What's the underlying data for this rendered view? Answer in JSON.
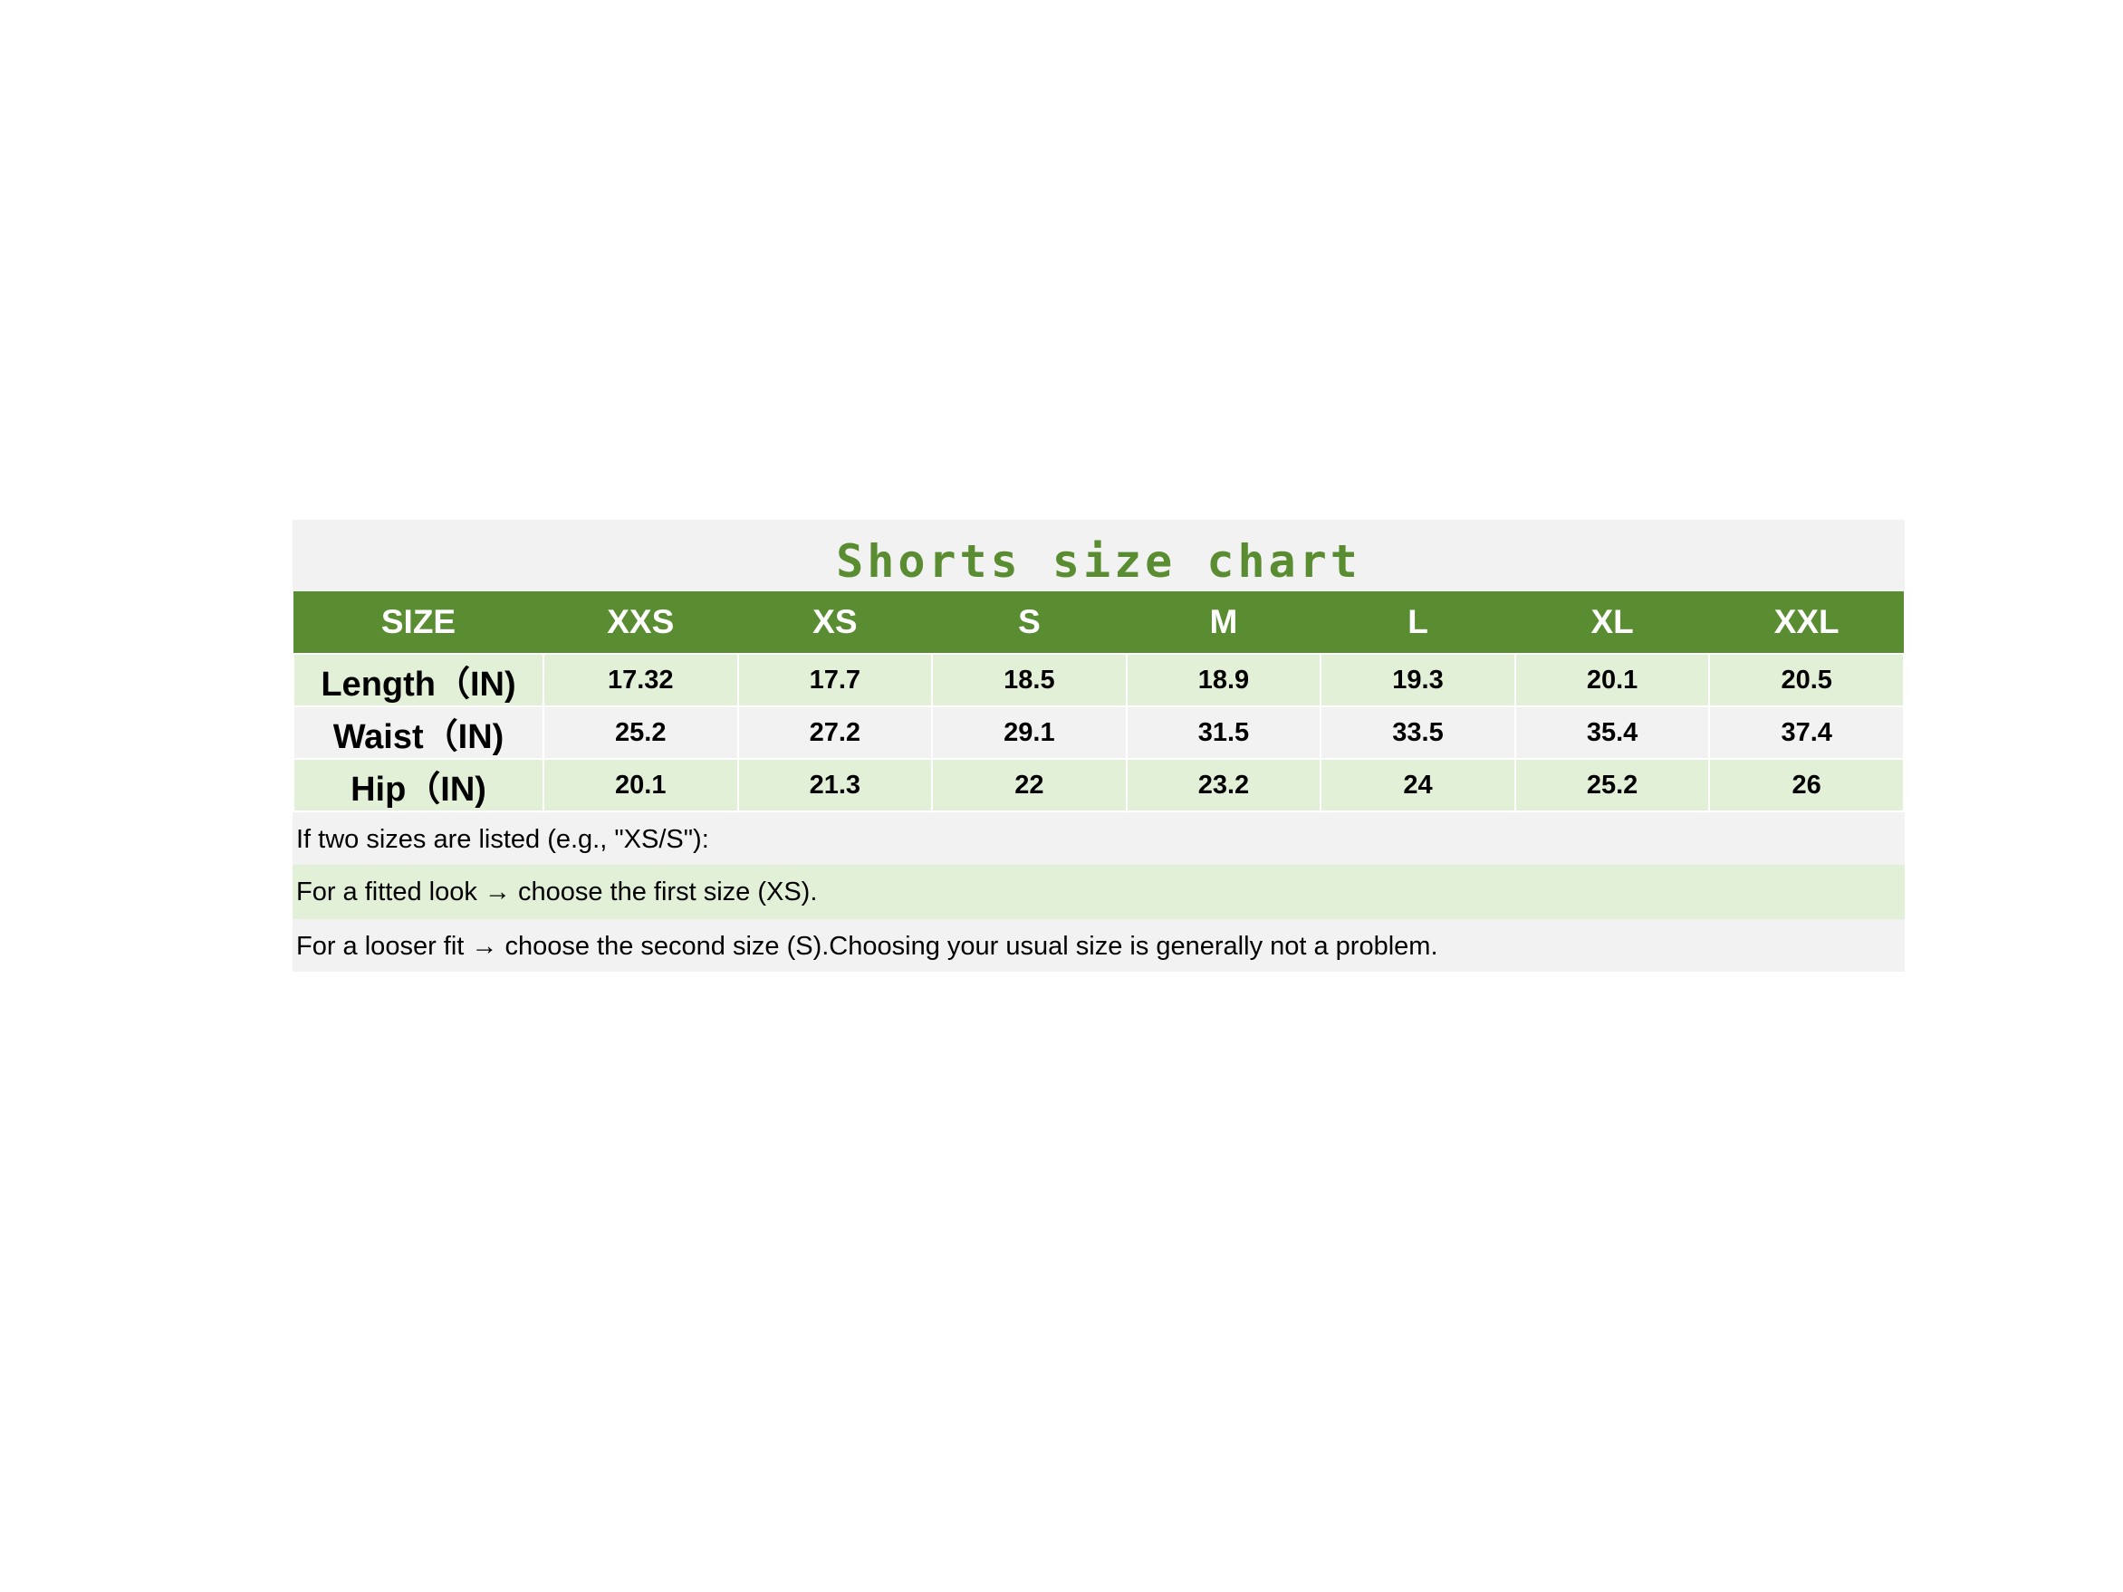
{
  "title": "Shorts size chart",
  "colors": {
    "header_bg": "#5a8d32",
    "title": "#5a8d31",
    "row_green": "#e3f0d8",
    "row_gray": "#f2f2f2"
  },
  "table": {
    "headers": [
      "SIZE",
      "XXS",
      "XS",
      "S",
      "M",
      "L",
      "XL",
      "XXL"
    ],
    "rows": [
      {
        "label": "Length（IN)",
        "values": [
          "17.32",
          "17.7",
          "18.5",
          "18.9",
          "19.3",
          "20.1",
          "20.5"
        ]
      },
      {
        "label": "Waist（IN)",
        "values": [
          "25.2",
          "27.2",
          "29.1",
          "31.5",
          "33.5",
          "35.4",
          "37.4"
        ]
      },
      {
        "label": "Hip（IN)",
        "values": [
          "20.1",
          "21.3",
          "22",
          "23.2",
          "24",
          "25.2",
          "26"
        ]
      }
    ]
  },
  "notes": [
    "If two sizes are listed (e.g., \"XS/S\"):",
    "For a fitted look → choose the first size (XS).",
    "For a looser fit → choose the second size (S).Choosing your usual size is generally not a problem."
  ]
}
